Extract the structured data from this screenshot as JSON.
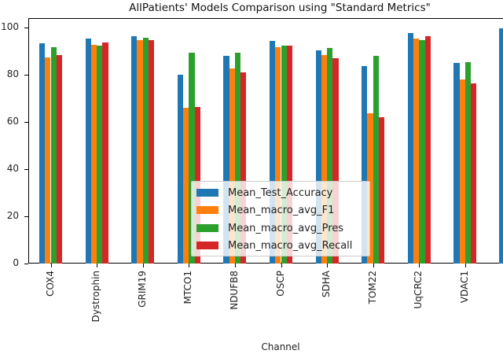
{
  "chart_data": {
    "type": "bar",
    "title": "AllPatients' Models Comparison using \"Standard Metrics\"",
    "xlabel": "Channel",
    "ylabel": "",
    "ylim": [
      0,
      104
    ],
    "yticks": [
      0,
      20,
      40,
      60,
      80,
      100
    ],
    "grid": false,
    "legend_position": "lower center",
    "categories": [
      "COX4",
      "Dystrophin",
      "GRIM19",
      "MTCO1",
      "NDUFB8",
      "OSCP",
      "SDHA",
      "TOM22",
      "UqCRC2",
      "VDAC1"
    ],
    "series": [
      {
        "name": "Mean_Test_Accuracy",
        "color": "#1f77b4",
        "values": [
          93.3,
          95.3,
          96.2,
          80.0,
          88.1,
          94.2,
          90.3,
          83.6,
          97.6,
          85.1
        ]
      },
      {
        "name": "Mean_macro_avg_F1",
        "color": "#ff7f0e",
        "values": [
          87.3,
          92.7,
          94.7,
          66.0,
          82.6,
          91.7,
          88.3,
          63.6,
          95.3,
          77.9
        ]
      },
      {
        "name": "Mean_macro_avg_Pres",
        "color": "#2ca02c",
        "values": [
          91.8,
          92.3,
          95.7,
          89.3,
          89.3,
          92.3,
          91.3,
          88.0,
          94.7,
          85.4
        ]
      },
      {
        "name": "Mean_macro_avg_Recall",
        "color": "#d62728",
        "values": [
          88.4,
          93.7,
          94.7,
          66.3,
          80.9,
          92.3,
          87.1,
          62.0,
          96.2,
          76.3
        ]
      }
    ],
    "partial_bar_cut_off_right": {
      "series": "Mean_Test_Accuracy",
      "value": 99.7
    }
  }
}
